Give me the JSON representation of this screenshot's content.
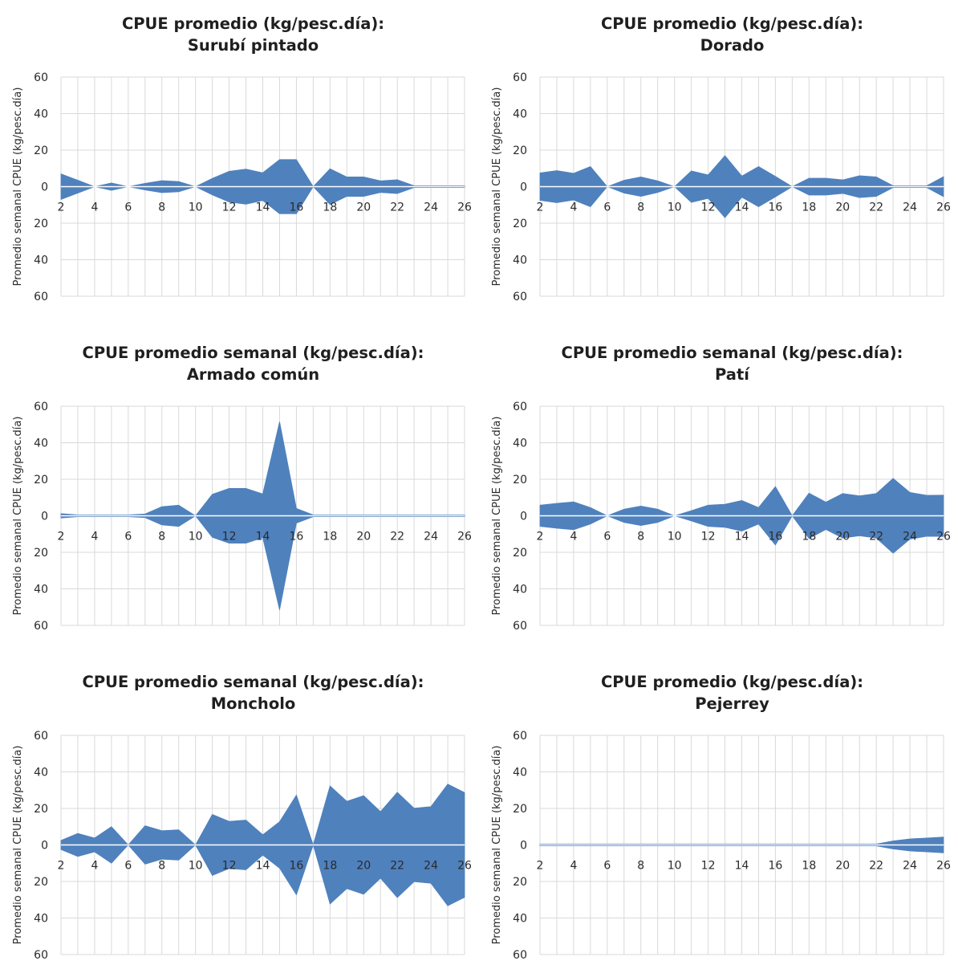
{
  "colors": {
    "fill": "#4f81bd",
    "grid": "#d9d9d9",
    "baseline": "#ffffff"
  },
  "chart_data": [
    {
      "type": "area",
      "title_lines": [
        "CPUE promedio (kg/pesc.día):",
        "Surubí pintado"
      ],
      "ylabel": "Promedio semanal CPUE (kg/pesc.día)",
      "xlim": [
        2,
        26
      ],
      "ylim": [
        -60,
        60
      ],
      "x_ticks": [
        "2",
        "4",
        "6",
        "8",
        "10",
        "12",
        "14",
        "16",
        "18",
        "20",
        "22",
        "24",
        "26"
      ],
      "y_ticks": [
        "60",
        "40",
        "20",
        "0",
        "20",
        "40",
        "60"
      ],
      "x": [
        2,
        3,
        4,
        5,
        6,
        7,
        8,
        9,
        10,
        11,
        12,
        13,
        14,
        15,
        16,
        17,
        18,
        19,
        20,
        21,
        22,
        23,
        24,
        25,
        26
      ],
      "values": [
        7,
        3.5,
        0,
        2,
        0,
        1.8,
        3.3,
        2.8,
        0,
        4.5,
        8.4,
        9.6,
        7.6,
        14.8,
        14.8,
        0,
        9.8,
        5.3,
        5.3,
        3.2,
        3.8,
        0.5,
        0.5,
        0.5,
        0.5
      ]
    },
    {
      "type": "area",
      "title_lines": [
        "CPUE promedio (kg/pesc.día):",
        "Dorado"
      ],
      "ylabel": "Promedio semanal CPUE (kg/pesc.día)",
      "xlim": [
        2,
        26
      ],
      "ylim": [
        -60,
        60
      ],
      "x_ticks": [
        "2",
        "4",
        "6",
        "8",
        "10",
        "12",
        "14",
        "16",
        "18",
        "20",
        "22",
        "24",
        "26"
      ],
      "y_ticks": [
        "60",
        "40",
        "20",
        "0",
        "20",
        "40",
        "60"
      ],
      "x": [
        2,
        3,
        4,
        5,
        6,
        7,
        8,
        9,
        10,
        11,
        12,
        13,
        14,
        15,
        16,
        17,
        18,
        19,
        20,
        21,
        22,
        23,
        24,
        25,
        26
      ],
      "values": [
        7.5,
        8.8,
        7.3,
        11,
        0,
        3.5,
        5.3,
        3.2,
        0,
        8.6,
        6.4,
        17,
        5.8,
        11,
        5.6,
        0,
        4.6,
        4.6,
        3.7,
        6,
        5.3,
        0.5,
        0.5,
        0.5,
        5.5
      ]
    },
    {
      "type": "area",
      "title_lines": [
        "CPUE promedio semanal (kg/pesc.día):",
        "Armado común"
      ],
      "ylabel": "Promedio semanal CPUE (kg/pesc.día)",
      "xlim": [
        2,
        26
      ],
      "ylim": [
        -60,
        60
      ],
      "x_ticks": [
        "2",
        "4",
        "6",
        "8",
        "10",
        "12",
        "14",
        "16",
        "18",
        "20",
        "22",
        "24",
        "26"
      ],
      "y_ticks": [
        "60",
        "40",
        "20",
        "0",
        "20",
        "40",
        "60"
      ],
      "x": [
        2,
        3,
        4,
        5,
        6,
        7,
        8,
        9,
        10,
        11,
        12,
        13,
        14,
        15,
        16,
        17,
        18,
        19,
        20,
        21,
        22,
        23,
        24,
        25,
        26
      ],
      "values": [
        1.2,
        0.5,
        0.5,
        0.5,
        0.5,
        1,
        5,
        5.8,
        0,
        11.8,
        15,
        15,
        12,
        51.5,
        4,
        0.5,
        0.5,
        0.5,
        0.5,
        0.5,
        0.5,
        0.5,
        0.5,
        0.5,
        0.5
      ]
    },
    {
      "type": "area",
      "title_lines": [
        "CPUE promedio semanal (kg/pesc.día):",
        "Patí"
      ],
      "ylabel": "Promedio semanal CPUE (kg/pesc.día)",
      "xlim": [
        2,
        26
      ],
      "ylim": [
        -60,
        60
      ],
      "x_ticks": [
        "2",
        "4",
        "6",
        "8",
        "10",
        "12",
        "14",
        "16",
        "18",
        "20",
        "22",
        "24",
        "26"
      ],
      "y_ticks": [
        "60",
        "40",
        "20",
        "0",
        "20",
        "40",
        "60"
      ],
      "x": [
        2,
        3,
        4,
        5,
        6,
        7,
        8,
        9,
        10,
        11,
        12,
        13,
        14,
        15,
        16,
        17,
        18,
        19,
        20,
        21,
        22,
        23,
        24,
        25,
        26
      ],
      "values": [
        5.8,
        6.8,
        7.6,
        4.5,
        0,
        3.6,
        5.3,
        3.6,
        0,
        2.8,
        5.8,
        6.3,
        8.4,
        4.5,
        16,
        0,
        12.4,
        7.5,
        12.2,
        10.9,
        12.2,
        20.5,
        12.8,
        11.2,
        11.3
      ]
    },
    {
      "type": "area",
      "title_lines": [
        "CPUE promedio semanal (kg/pesc.día):",
        "Moncholo"
      ],
      "ylabel": "Promedio semanal CPUE (kg/pesc.día)",
      "xlim": [
        2,
        26
      ],
      "ylim": [
        -60,
        60
      ],
      "x_ticks": [
        "2",
        "4",
        "6",
        "8",
        "10",
        "12",
        "14",
        "16",
        "18",
        "20",
        "22",
        "24",
        "26"
      ],
      "y_ticks": [
        "60",
        "40",
        "20",
        "0",
        "20",
        "40",
        "60"
      ],
      "x": [
        2,
        3,
        4,
        5,
        6,
        7,
        8,
        9,
        10,
        11,
        12,
        13,
        14,
        15,
        16,
        17,
        18,
        19,
        20,
        21,
        22,
        23,
        24,
        25,
        26
      ],
      "values": [
        2.5,
        6.3,
        3.8,
        10,
        0,
        10.5,
        7.8,
        8.3,
        0,
        16.7,
        12.9,
        13.6,
        5.6,
        12.7,
        27.3,
        0,
        32.3,
        23.9,
        27,
        18.2,
        28.8,
        20.1,
        21,
        33.3,
        28.7
      ]
    },
    {
      "type": "area",
      "title_lines": [
        "CPUE promedio (kg/pesc.día):",
        "Pejerrey"
      ],
      "ylabel": "Promedio semanal CPUE (kg/pesc.día)",
      "xlim": [
        2,
        26
      ],
      "ylim": [
        -60,
        60
      ],
      "x_ticks": [
        "2",
        "4",
        "6",
        "8",
        "10",
        "12",
        "14",
        "16",
        "18",
        "20",
        "22",
        "24",
        "26"
      ],
      "y_ticks": [
        "60",
        "40",
        "20",
        "0",
        "20",
        "40",
        "60"
      ],
      "x": [
        2,
        3,
        4,
        5,
        6,
        7,
        8,
        9,
        10,
        11,
        12,
        13,
        14,
        15,
        16,
        17,
        18,
        19,
        20,
        21,
        22,
        23,
        24,
        25,
        26
      ],
      "values": [
        0.5,
        0.5,
        0.5,
        0.5,
        0.5,
        0.5,
        0.5,
        0.5,
        0.5,
        0.5,
        0.5,
        0.5,
        0.5,
        0.5,
        0.5,
        0.5,
        0.5,
        0.5,
        0.5,
        0.5,
        0.5,
        2.2,
        3.3,
        3.8,
        4.3
      ]
    }
  ]
}
